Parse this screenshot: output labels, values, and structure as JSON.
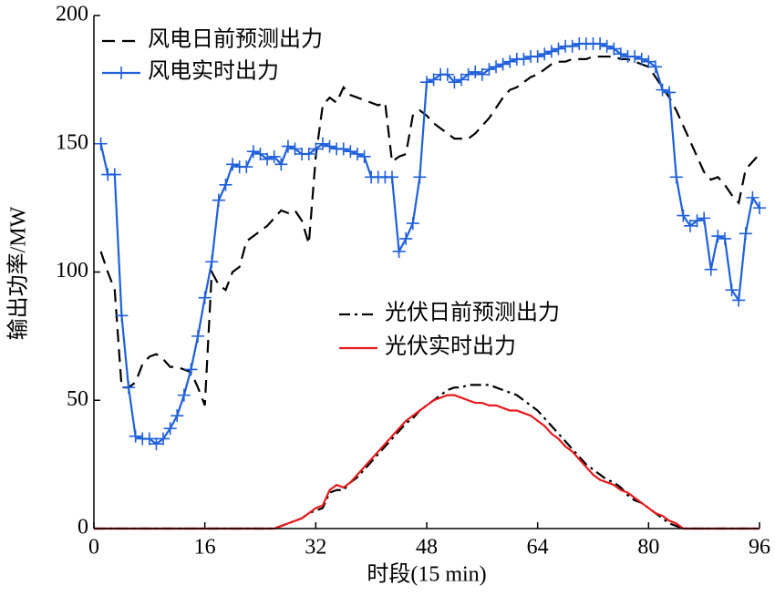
{
  "chart_data": {
    "type": "line",
    "xlabel": "时段(15 min)",
    "ylabel": "输出功率/MW",
    "x": [
      0,
      1,
      2,
      3,
      4,
      5,
      6,
      7,
      8,
      9,
      10,
      11,
      12,
      13,
      14,
      15,
      16,
      17,
      18,
      19,
      20,
      21,
      22,
      23,
      24,
      25,
      26,
      27,
      28,
      29,
      30,
      31,
      32,
      33,
      34,
      35,
      36,
      37,
      38,
      39,
      40,
      41,
      42,
      43,
      44,
      45,
      46,
      47,
      48,
      49,
      50,
      51,
      52,
      53,
      54,
      55,
      56,
      57,
      58,
      59,
      60,
      61,
      62,
      63,
      64,
      65,
      66,
      67,
      68,
      69,
      70,
      71,
      72,
      73,
      74,
      75,
      76,
      77,
      78,
      79,
      80,
      81,
      82,
      83,
      84,
      85,
      86,
      87,
      88,
      89,
      90,
      91,
      92,
      93,
      94,
      95,
      96
    ],
    "xlim": [
      0,
      96
    ],
    "xticks": [
      0,
      16,
      32,
      48,
      64,
      80,
      96
    ],
    "ylim": [
      0,
      200
    ],
    "yticks": [
      0,
      50,
      100,
      150,
      200
    ],
    "series": [
      {
        "name": "风电日前预测出力",
        "color": "#000000",
        "style": "dashed",
        "marker": null,
        "values": [
          null,
          108,
          100,
          93,
          55,
          55,
          57,
          64,
          67,
          68,
          66,
          63,
          63,
          62,
          61,
          55,
          48,
          100,
          95,
          93,
          100,
          102,
          112,
          114,
          116,
          118,
          121,
          124,
          123,
          124,
          120,
          111,
          145,
          165,
          168,
          166,
          172,
          169,
          168,
          167,
          166,
          165,
          166,
          143,
          145,
          146,
          161,
          163,
          161,
          158,
          156,
          154,
          152,
          152,
          152,
          154,
          157,
          160,
          164,
          168,
          171,
          172,
          174,
          176,
          177,
          179,
          181,
          182,
          182,
          183,
          183,
          183,
          184,
          184,
          184,
          184,
          183,
          183,
          182,
          181,
          180,
          176,
          172,
          168,
          163,
          157,
          151,
          145,
          139,
          136,
          137,
          134,
          130,
          127,
          140,
          143,
          146
        ]
      },
      {
        "name": "风电实时出力",
        "color": "#1f5fdc",
        "style": "solid",
        "marker": "+",
        "values": [
          null,
          150,
          138,
          138,
          83,
          55,
          36,
          35,
          35,
          33,
          35,
          39,
          44,
          52,
          62,
          75,
          90,
          104,
          128,
          134,
          142,
          141,
          141,
          147,
          146,
          144,
          145,
          142,
          149,
          148,
          146,
          146,
          148,
          150,
          149,
          148,
          148,
          147,
          146,
          145,
          137,
          137,
          137,
          137,
          108,
          113,
          119,
          137,
          174,
          175,
          177,
          177,
          174,
          175,
          177,
          178,
          177,
          179,
          180,
          181,
          182,
          183,
          183,
          184,
          184,
          185,
          186,
          187,
          188,
          188,
          189,
          189,
          189,
          189,
          188,
          187,
          185,
          184,
          184,
          183,
          182,
          180,
          171,
          170,
          137,
          122,
          118,
          120,
          121,
          101,
          114,
          113,
          93,
          89,
          115,
          129,
          125
        ]
      },
      {
        "name": "光伏日前预测出力",
        "color": "#000000",
        "style": "dashdot",
        "marker": null,
        "values": [
          0,
          0,
          0,
          0,
          0,
          0,
          0,
          0,
          0,
          0,
          0,
          0,
          0,
          0,
          0,
          0,
          0,
          0,
          0,
          0,
          0,
          0,
          0,
          0,
          0,
          0,
          0,
          1,
          2,
          3,
          4,
          6,
          7,
          8,
          14,
          15,
          15,
          18,
          20,
          23,
          26,
          29,
          32,
          35,
          38,
          41,
          43,
          46,
          48,
          50,
          52,
          54,
          55,
          55,
          56,
          56,
          56,
          56,
          55,
          54,
          53,
          52,
          50,
          48,
          46,
          43,
          40,
          37,
          34,
          31,
          28,
          25,
          23,
          21,
          19,
          18,
          16,
          13,
          11,
          10,
          8,
          6,
          4,
          2,
          1,
          0,
          0,
          0,
          0,
          0,
          0,
          0,
          0,
          0,
          0,
          0,
          0
        ]
      },
      {
        "name": "光伏实时出力",
        "color": "#e8191c",
        "style": "solid",
        "marker": null,
        "values": [
          0,
          0,
          0,
          0,
          0,
          0,
          0,
          0,
          0,
          0,
          0,
          0,
          0,
          0,
          0,
          0,
          0,
          0,
          0,
          0,
          0,
          0,
          0,
          0,
          0,
          0,
          0,
          1,
          2,
          3,
          4,
          6,
          8,
          9,
          15,
          17,
          16,
          18,
          21,
          24,
          27,
          30,
          33,
          36,
          39,
          42,
          44,
          46,
          48,
          50,
          51,
          52,
          52,
          51,
          50,
          49,
          49,
          48,
          48,
          47,
          46,
          46,
          45,
          44,
          42,
          40,
          37,
          35,
          32,
          30,
          27,
          24,
          21,
          19,
          18,
          17,
          15,
          14,
          12,
          10,
          8,
          6,
          5,
          3,
          2,
          0,
          0,
          0,
          0,
          0,
          0,
          0,
          0,
          0,
          0,
          0,
          0
        ]
      }
    ]
  }
}
